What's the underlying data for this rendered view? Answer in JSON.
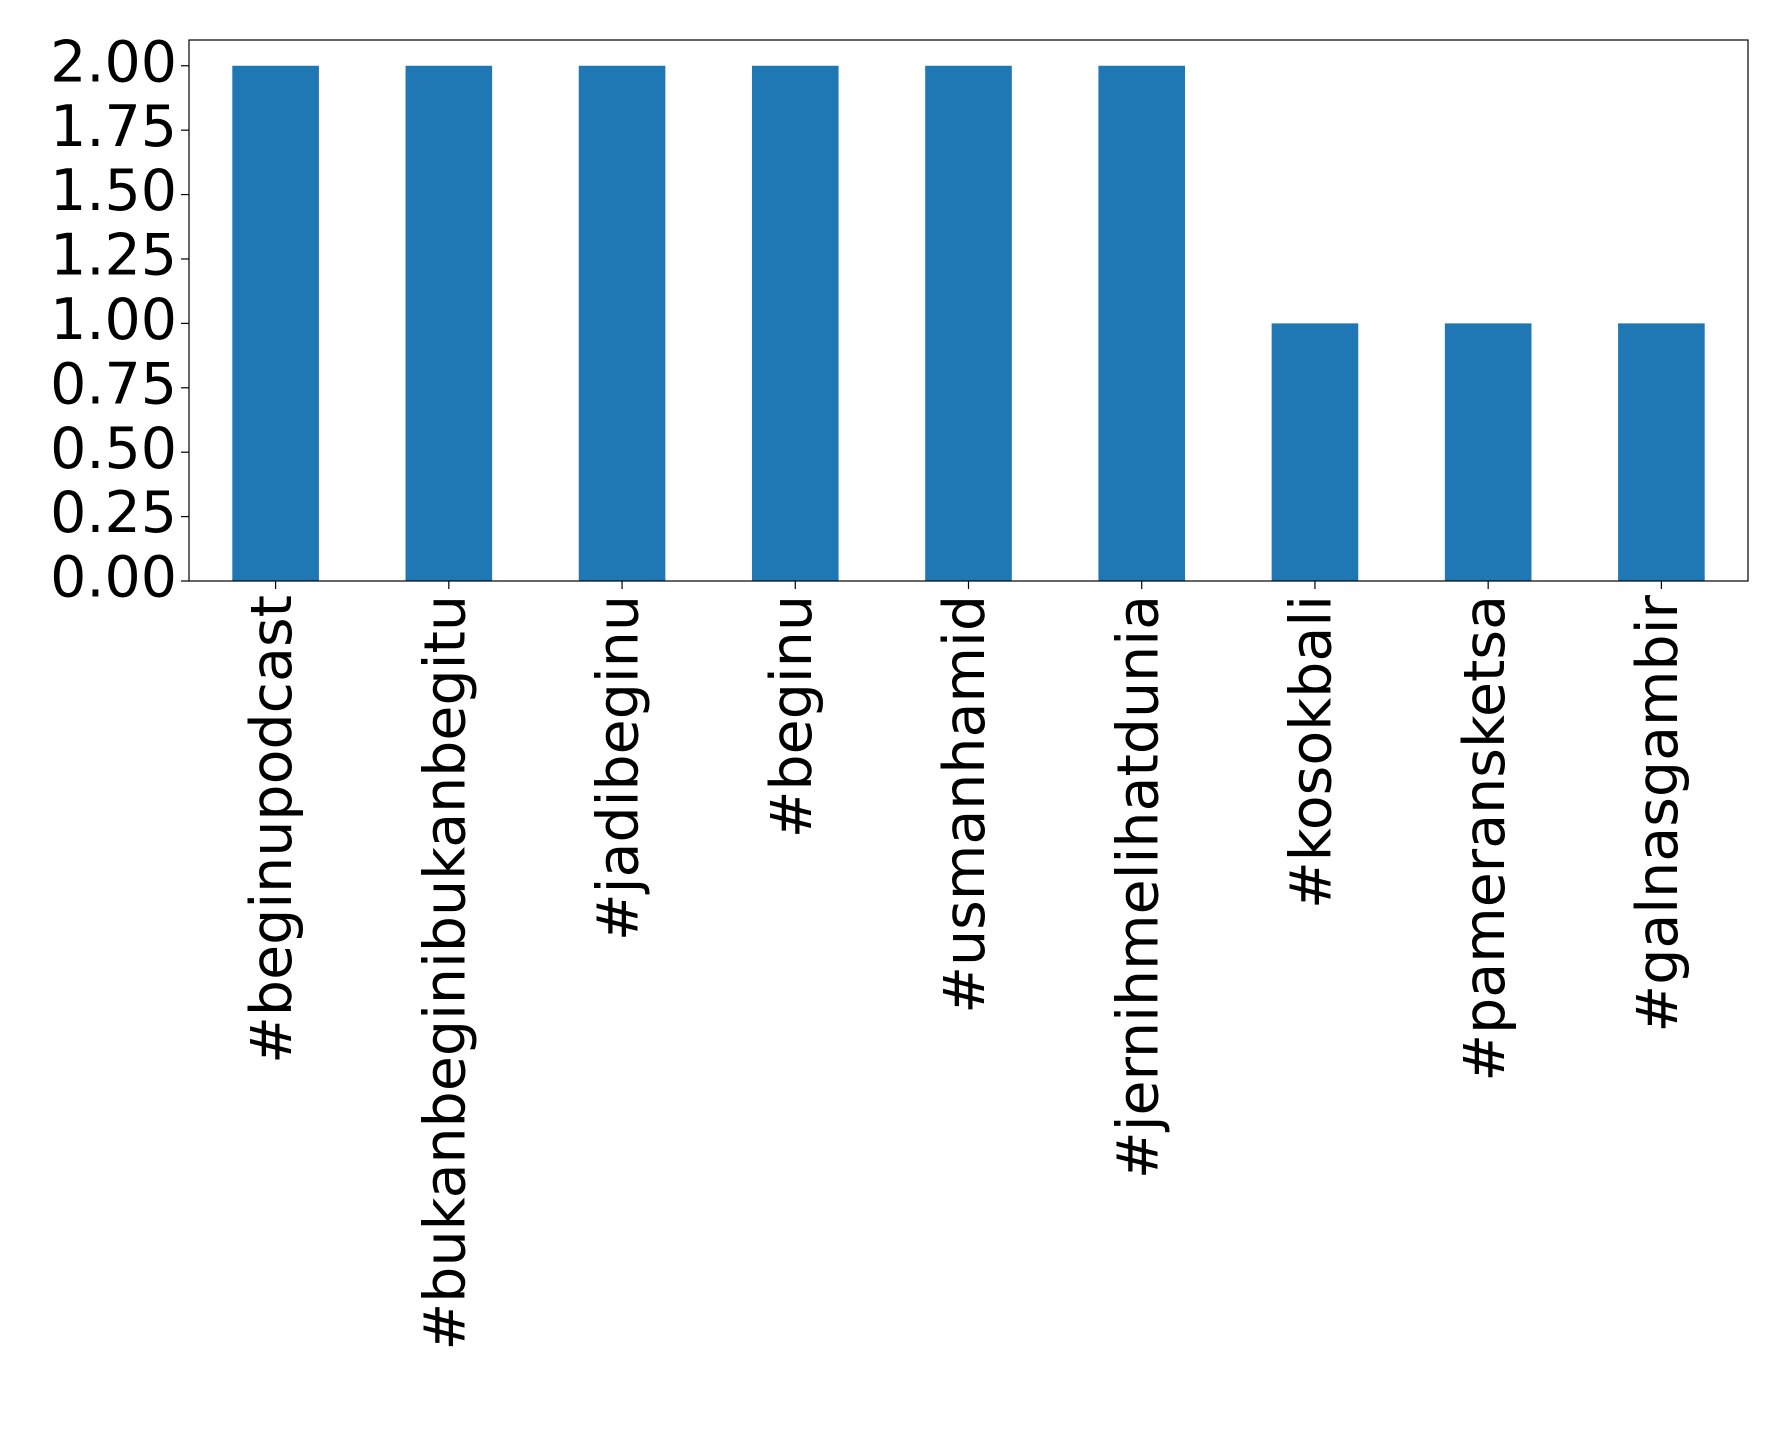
{
  "chart_data": {
    "type": "bar",
    "categories": [
      "#beginupodcast",
      "#bukanbeginibukanbegitu",
      "#jadibeginu",
      "#beginu",
      "#usmanhamid",
      "#jernihmelihatdunia",
      "#kosokbali",
      "#pameransketsa",
      "#galnasgambir"
    ],
    "values": [
      2,
      2,
      2,
      2,
      2,
      2,
      1,
      1,
      1
    ],
    "color": "#1f77b4",
    "ylim": [
      0,
      2.1
    ],
    "yticks": [
      {
        "value": 0,
        "label": "0.00"
      },
      {
        "value": 0.25,
        "label": "0.25"
      },
      {
        "value": 0.5,
        "label": "0.50"
      },
      {
        "value": 0.75,
        "label": "0.75"
      },
      {
        "value": 1,
        "label": "1.00"
      },
      {
        "value": 1.25,
        "label": "1.25"
      },
      {
        "value": 1.5,
        "label": "1.50"
      },
      {
        "value": 1.75,
        "label": "1.75"
      },
      {
        "value": 2,
        "label": "2.00"
      }
    ],
    "grid": false
  }
}
